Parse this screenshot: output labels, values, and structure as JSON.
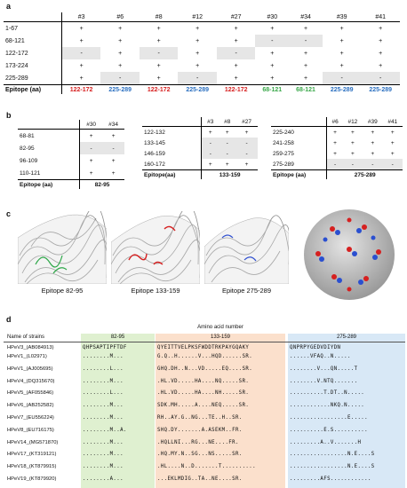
{
  "panels": {
    "a": "a",
    "b": "b",
    "c": "c",
    "d": "d"
  },
  "table_a": {
    "cols": [
      "#3",
      "#6",
      "#8",
      "#12",
      "#27",
      "#30",
      "#34",
      "#39",
      "#41"
    ],
    "rows": [
      {
        "label": "1-67",
        "cells": [
          "+",
          "+",
          "+",
          "+",
          "+",
          "+",
          "+",
          "+",
          "+"
        ],
        "gray": [
          0,
          0,
          0,
          0,
          0,
          0,
          0,
          0,
          0
        ]
      },
      {
        "label": "68-121",
        "cells": [
          "+",
          "+",
          "+",
          "+",
          "+",
          "-",
          "-",
          "+",
          "+"
        ],
        "gray": [
          0,
          0,
          0,
          0,
          0,
          1,
          1,
          0,
          0
        ]
      },
      {
        "label": "122-172",
        "cells": [
          "-",
          "+",
          "-",
          "+",
          "-",
          "+",
          "+",
          "+",
          "+"
        ],
        "gray": [
          1,
          0,
          1,
          0,
          1,
          0,
          0,
          0,
          0
        ]
      },
      {
        "label": "173-224",
        "cells": [
          "+",
          "+",
          "+",
          "+",
          "+",
          "+",
          "+",
          "+",
          "+"
        ],
        "gray": [
          0,
          0,
          0,
          0,
          0,
          0,
          0,
          0,
          0
        ]
      },
      {
        "label": "225-289",
        "cells": [
          "+",
          "-",
          "+",
          "-",
          "+",
          "+",
          "+",
          "-",
          "-"
        ],
        "gray": [
          0,
          1,
          0,
          1,
          0,
          0,
          0,
          1,
          1
        ]
      }
    ],
    "foot_label": "Epitope (aa)",
    "epitopes": [
      "122-172",
      "225-289",
      "122-172",
      "225-289",
      "122-172",
      "68-121",
      "68-121",
      "225-289",
      "225-289"
    ],
    "epitope_colors": [
      "red",
      "blue",
      "red",
      "blue",
      "red",
      "green",
      "green",
      "blue",
      "blue"
    ]
  },
  "table_b1": {
    "cols": [
      "#30",
      "#34"
    ],
    "rows": [
      {
        "label": "68-81",
        "cells": [
          "+",
          "+"
        ],
        "gray": [
          0,
          0
        ]
      },
      {
        "label": "82-95",
        "cells": [
          "-",
          "-"
        ],
        "gray": [
          1,
          1
        ]
      },
      {
        "label": "96-109",
        "cells": [
          "+",
          "+"
        ],
        "gray": [
          0,
          0
        ]
      },
      {
        "label": "110-121",
        "cells": [
          "+",
          "+"
        ],
        "gray": [
          0,
          0
        ]
      }
    ],
    "foot_label": "Epitope (aa)",
    "foot_value": "82-95"
  },
  "table_b2": {
    "cols": [
      "#3",
      "#8",
      "#27"
    ],
    "rows": [
      {
        "label": "122-132",
        "cells": [
          "+",
          "+",
          "+"
        ],
        "gray": [
          0,
          0,
          0
        ]
      },
      {
        "label": "133-145",
        "cells": [
          "-",
          "-",
          "-"
        ],
        "gray": [
          1,
          1,
          1
        ]
      },
      {
        "label": "146-159",
        "cells": [
          "-",
          "-",
          "-"
        ],
        "gray": [
          1,
          1,
          1
        ]
      },
      {
        "label": "160-172",
        "cells": [
          "+",
          "+",
          "+"
        ],
        "gray": [
          0,
          0,
          0
        ]
      }
    ],
    "foot_label": "Epitope(aa)",
    "foot_value": "133-159"
  },
  "table_b3": {
    "cols": [
      "#6",
      "#12",
      "#39",
      "#41"
    ],
    "rows": [
      {
        "label": "225-240",
        "cells": [
          "+",
          "+",
          "+",
          "+"
        ],
        "gray": [
          0,
          0,
          0,
          0
        ]
      },
      {
        "label": "241-258",
        "cells": [
          "+",
          "+",
          "+",
          "+"
        ],
        "gray": [
          0,
          0,
          0,
          0
        ]
      },
      {
        "label": "259-275",
        "cells": [
          "+",
          "+",
          "+",
          "+"
        ],
        "gray": [
          0,
          0,
          0,
          0
        ]
      },
      {
        "label": "275-289",
        "cells": [
          "-",
          "-",
          "-",
          "-"
        ],
        "gray": [
          1,
          1,
          1,
          1
        ]
      }
    ],
    "foot_label": "Epitope (aa)",
    "foot_value": "275-289"
  },
  "panel_c": {
    "captions": [
      "Epitope 82-95",
      "Epitope 133-159",
      "Epitope 275-289"
    ],
    "highlight_colors": [
      "#2fa84a",
      "#d62020",
      "#3050d0"
    ]
  },
  "panel_d": {
    "header": "Amino acid number",
    "name_header": "Name of strains",
    "regions": [
      "82-95",
      "133-159",
      "275-289"
    ],
    "region_colors": [
      "#dff0d0",
      "#fbe0cc",
      "#d8e8f6"
    ],
    "reference": {
      "name": "HPeV3_(AB084913)",
      "s1": "QHPSAPTIPFTDF",
      "s2": "QYEITTVELPKSFWDDTRKPAYGQAKY",
      "s3": "QNPRPYGEDVDIYDN"
    },
    "strains": [
      {
        "name": "HPeV1_(L02971)",
        "s1": "........M...",
        "s2": "G.Q..H......V...HQD......SR.",
        "s3": "......VFAQ..N....."
      },
      {
        "name": "HPeV1_(AJ005695)",
        "s1": "........L...",
        "s2": "GHQ.DH..N...VD.....EQ....SR.",
        "s3": "........V...QN.....T"
      },
      {
        "name": "HPeV4_(DQ315670)",
        "s1": "........M...",
        "s2": ".HL.VD.....HA....NQ.....SR.",
        "s3": "........V.NTQ......."
      },
      {
        "name": "HPeV5_(AF055846)",
        "s1": "........L...",
        "s2": ".HL.VD.....HA....NH.....SR.",
        "s3": "..........T.DT..N....."
      },
      {
        "name": "HPeV6_(AB252582)",
        "s1": "........M...",
        "s2": "SDK.MH.....A....NEQ.....SR.",
        "s3": "............NKQ.N....."
      },
      {
        "name": "HPeV7_(EU556224)",
        "s1": "........M...",
        "s2": "RH..AY.G..NG...TE..H..SR.",
        "s3": ".................E....."
      },
      {
        "name": "HPeV8_(EU716175)",
        "s1": "........M..A.",
        "s2": "SHQ.DY.......A.ASEKM..FR.",
        "s3": "..........E.S.........."
      },
      {
        "name": "HPeV14_(MG571870)",
        "s1": "........M...",
        "s2": ".HQLLNI...RG...NE....FR.",
        "s3": ".........A..V.......H"
      },
      {
        "name": "HPeV17_(KT319121)",
        "s1": "........M...",
        "s2": ".HQ.MY.N..SG...NS.....SR.",
        "s3": ".................N.E....S"
      },
      {
        "name": "HPeV18_(KT879915)",
        "s1": "........M...",
        "s2": ".HL....N..D.......T..........",
        "s3": ".................N.E....S"
      },
      {
        "name": "HPeV19_(KT879920)",
        "s1": "........A...",
        "s2": "...EKLMDIG..TA..NE....SR.",
        "s3": ".........AFS............"
      }
    ]
  }
}
